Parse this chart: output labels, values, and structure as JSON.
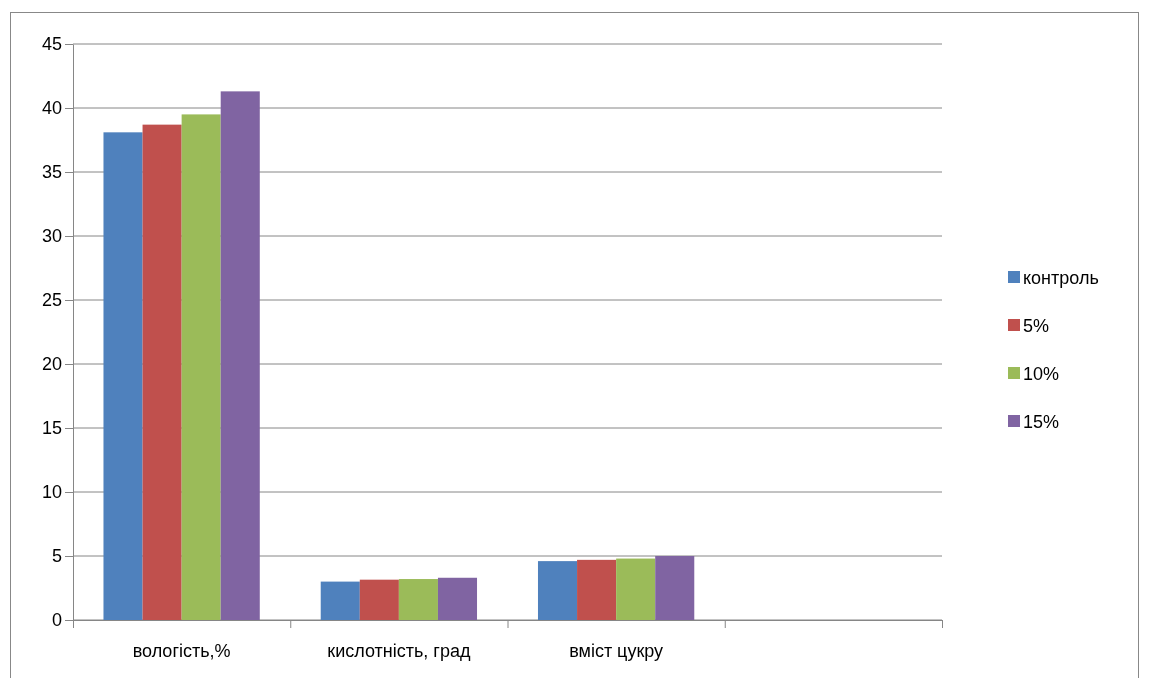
{
  "chart_data": {
    "type": "bar",
    "categories": [
      "вологість,%",
      "кислотність, град",
      "вміст цукру",
      null
    ],
    "series": [
      {
        "name": "контроль",
        "color": "#4f81bd",
        "values": [
          38.1,
          3.0,
          4.6,
          null
        ]
      },
      {
        "name": "5%",
        "color": "#c0504d",
        "values": [
          38.7,
          3.15,
          4.7,
          null
        ]
      },
      {
        "name": "10%",
        "color": "#9bbb59",
        "values": [
          39.5,
          3.2,
          4.8,
          null
        ]
      },
      {
        "name": "15%",
        "color": "#8064a2",
        "values": [
          41.3,
          3.3,
          5.0,
          null
        ]
      }
    ],
    "ylim": [
      0,
      45
    ],
    "yticks": [
      0,
      5,
      10,
      15,
      20,
      25,
      30,
      35,
      40,
      45
    ],
    "grid": "y",
    "legend": "right"
  }
}
